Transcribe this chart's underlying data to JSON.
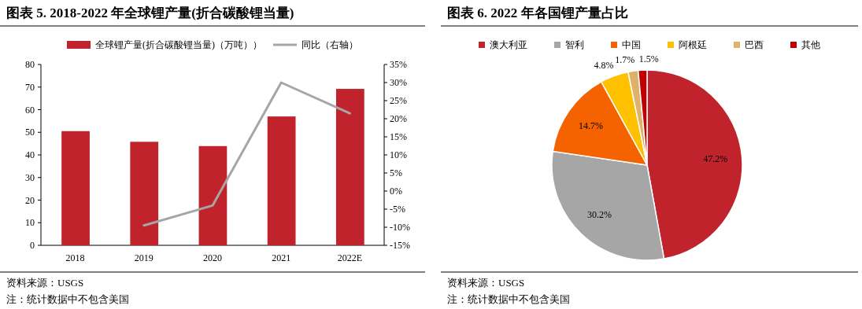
{
  "chart_data": [
    {
      "type": "bar",
      "title": "图表 5.  2018-2022 年全球锂产量(折合碳酸锂当量)",
      "categories": [
        "2018",
        "2019",
        "2020",
        "2021",
        "2022E"
      ],
      "series": [
        {
          "name": "全球锂产量(折合碳酸锂当量)（万吨））",
          "color": "#c0232c",
          "values": [
            50.5,
            45.8,
            43.9,
            57.0,
            69.2
          ]
        },
        {
          "name": "同比（右轴）",
          "type": "line",
          "axis": "y2",
          "color": "#a6a6a6",
          "values": [
            null,
            -9.5,
            -4,
            30,
            21.5
          ]
        }
      ],
      "ylim": [
        0,
        80
      ],
      "yticks": [
        0,
        10,
        20,
        30,
        40,
        50,
        60,
        70,
        80
      ],
      "y2lim": [
        -15,
        35
      ],
      "y2ticks": [
        {
          "value": -15,
          "label": "-15%"
        },
        {
          "value": -10,
          "label": "-10%"
        },
        {
          "value": -5,
          "label": "-5%"
        },
        {
          "value": 0,
          "label": "0%"
        },
        {
          "value": 5,
          "label": "5%"
        },
        {
          "value": 10,
          "label": "10%"
        },
        {
          "value": 15,
          "label": "15%"
        },
        {
          "value": 20,
          "label": "20%"
        },
        {
          "value": 25,
          "label": "25%"
        },
        {
          "value": 30,
          "label": "30%"
        },
        {
          "value": 35,
          "label": "35%"
        }
      ],
      "legend": "top",
      "annotations": [
        "资料来源：USGS",
        "注：统计数据中不包含美国"
      ]
    },
    {
      "type": "pie",
      "title": "图表 6.  2022 年各国锂产量占比",
      "categories": [
        "澳大利亚",
        "智利",
        "中国",
        "阿根廷",
        "巴西",
        "其他"
      ],
      "values": [
        47.2,
        30.2,
        14.7,
        4.8,
        1.7,
        1.5
      ],
      "colors": [
        "#c0232c",
        "#a6a6a6",
        "#f56200",
        "#ffc000",
        "#deb26b",
        "#c00000"
      ],
      "value_labels": [
        "47.2%",
        "30.2%",
        "14.7%",
        "4.8%",
        "1.7%",
        "1.5%"
      ],
      "legend": "top",
      "annotations": [
        "资料来源：USGS",
        "注：统计数据中不包含美国"
      ]
    }
  ]
}
